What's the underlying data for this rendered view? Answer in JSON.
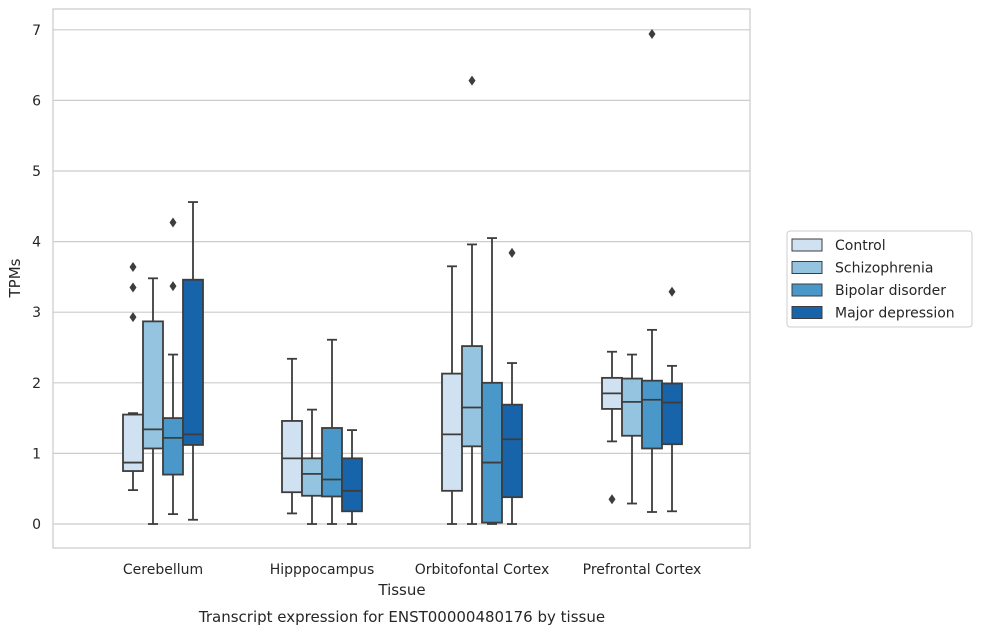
{
  "caption": "Transcript expression for ENST00000480176 by tissue",
  "chart_data": {
    "type": "box",
    "title": "",
    "xlabel": "Tissue",
    "ylabel": "TPMs",
    "ylim": [
      -0.33,
      7.3
    ],
    "yticks": [
      0,
      1,
      2,
      3,
      4,
      5,
      6,
      7
    ],
    "grid": "horizontal",
    "legend_position": "right, outside plot",
    "categories": [
      "Cerebellum",
      "Hipppocampus",
      "Orbitofontal Cortex",
      "Prefrontal Cortex"
    ],
    "series": [
      {
        "name": "Control",
        "color": "#d0e1f2",
        "boxes": [
          {
            "whislo": 0.48,
            "q1": 0.75,
            "med": 0.87,
            "q3": 1.55,
            "whishi": 1.57,
            "fliers": [
              2.93,
              3.35,
              3.64
            ]
          },
          {
            "whislo": 0.15,
            "q1": 0.45,
            "med": 0.93,
            "q3": 1.46,
            "whishi": 2.34,
            "fliers": []
          },
          {
            "whislo": 0.0,
            "q1": 0.47,
            "med": 1.27,
            "q3": 2.13,
            "whishi": 3.65,
            "fliers": []
          },
          {
            "whislo": 1.17,
            "q1": 1.63,
            "med": 1.85,
            "q3": 2.07,
            "whishi": 2.44,
            "fliers": [
              0.35
            ]
          }
        ]
      },
      {
        "name": "Schizophrenia",
        "color": "#94c4df",
        "boxes": [
          {
            "whislo": 0.0,
            "q1": 1.07,
            "med": 1.34,
            "q3": 2.87,
            "whishi": 3.48,
            "fliers": []
          },
          {
            "whislo": 0.0,
            "q1": 0.4,
            "med": 0.71,
            "q3": 0.93,
            "whishi": 1.62,
            "fliers": []
          },
          {
            "whislo": 0.0,
            "q1": 1.1,
            "med": 1.65,
            "q3": 2.52,
            "whishi": 3.96,
            "fliers": [
              6.28
            ]
          },
          {
            "whislo": 0.29,
            "q1": 1.25,
            "med": 1.73,
            "q3": 2.06,
            "whishi": 2.4,
            "fliers": []
          }
        ]
      },
      {
        "name": "Bipolar disorder",
        "color": "#4a98c9",
        "boxes": [
          {
            "whislo": 0.14,
            "q1": 0.7,
            "med": 1.22,
            "q3": 1.5,
            "whishi": 2.4,
            "fliers": [
              3.37,
              4.27
            ]
          },
          {
            "whislo": 0.0,
            "q1": 0.39,
            "med": 0.63,
            "q3": 1.36,
            "whishi": 2.61,
            "fliers": []
          },
          {
            "whislo": 0.0,
            "q1": 0.02,
            "med": 0.87,
            "q3": 2.0,
            "whishi": 4.05,
            "fliers": []
          },
          {
            "whislo": 0.17,
            "q1": 1.07,
            "med": 1.76,
            "q3": 2.03,
            "whishi": 2.75,
            "fliers": [
              6.94
            ]
          }
        ]
      },
      {
        "name": "Major depression",
        "color": "#1764ab",
        "boxes": [
          {
            "whislo": 0.06,
            "q1": 1.12,
            "med": 1.27,
            "q3": 3.46,
            "whishi": 4.56,
            "fliers": []
          },
          {
            "whislo": 0.0,
            "q1": 0.18,
            "med": 0.47,
            "q3": 0.93,
            "whishi": 1.33,
            "fliers": []
          },
          {
            "whislo": 0.0,
            "q1": 0.38,
            "med": 1.2,
            "q3": 1.69,
            "whishi": 2.28,
            "fliers": [
              3.84
            ]
          },
          {
            "whislo": 0.18,
            "q1": 1.13,
            "med": 1.72,
            "q3": 1.99,
            "whishi": 2.24,
            "fliers": [
              3.29
            ]
          }
        ]
      }
    ]
  }
}
